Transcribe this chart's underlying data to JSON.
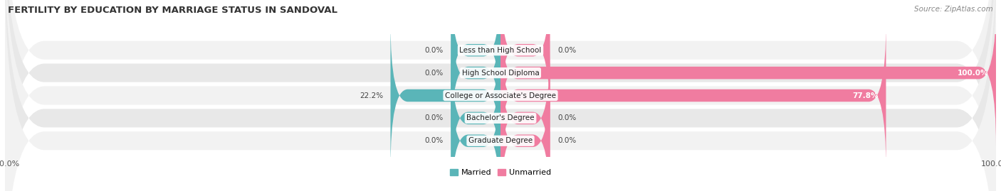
{
  "title": "FERTILITY BY EDUCATION BY MARRIAGE STATUS IN SANDOVAL",
  "source": "Source: ZipAtlas.com",
  "categories": [
    "Less than High School",
    "High School Diploma",
    "College or Associate's Degree",
    "Bachelor's Degree",
    "Graduate Degree"
  ],
  "married": [
    0.0,
    0.0,
    22.2,
    0.0,
    0.0
  ],
  "unmarried": [
    0.0,
    100.0,
    77.8,
    0.0,
    0.0
  ],
  "married_color": "#5ab5b8",
  "unmarried_color": "#f07ca0",
  "row_bg_color_odd": "#f2f2f2",
  "row_bg_color_even": "#e8e8e8",
  "married_label": "Married",
  "unmarried_label": "Unmarried",
  "xlim": 100,
  "stub_size": 10,
  "title_fontsize": 9.5,
  "label_fontsize": 7.5,
  "tick_fontsize": 8,
  "source_fontsize": 7.5,
  "value_fontsize": 7.5,
  "figsize": [
    14.06,
    2.69
  ],
  "dpi": 100
}
